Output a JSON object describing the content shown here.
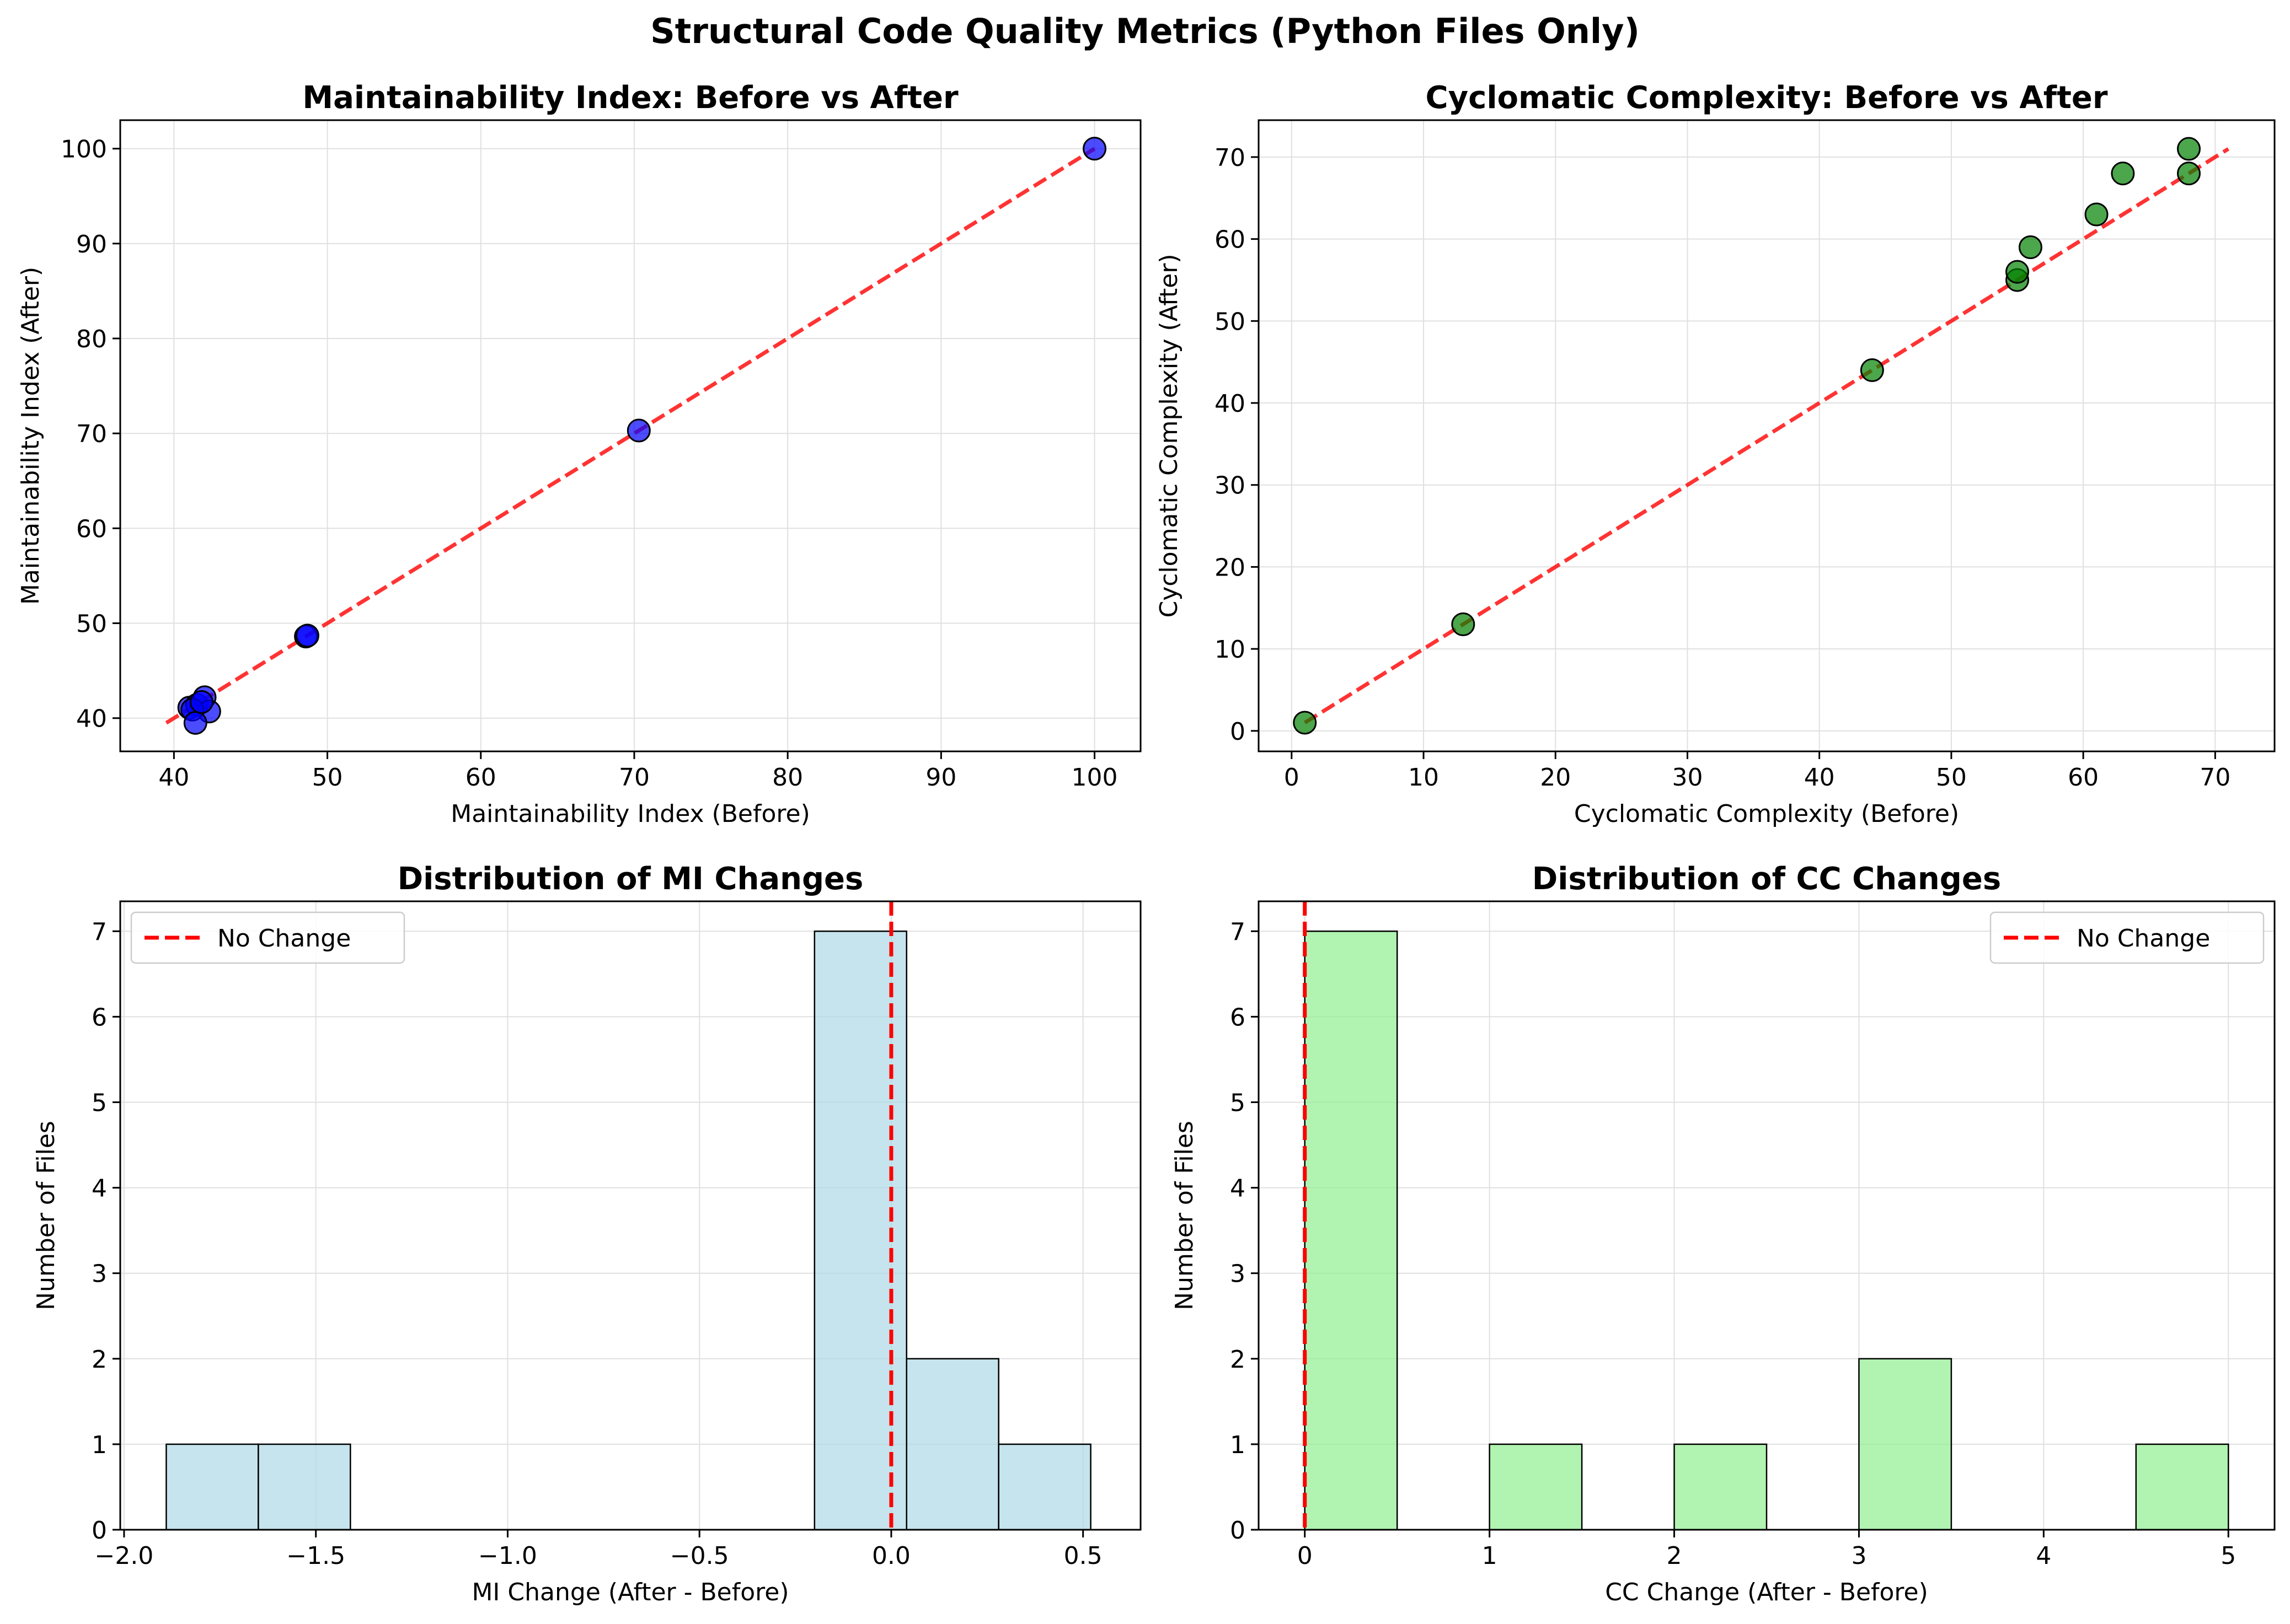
{
  "figure": {
    "suptitle": "Structural Code Quality Metrics (Python Files Only)"
  },
  "chart_data": [
    {
      "type": "scatter",
      "title": "Maintainability Index: Before vs After",
      "xlabel": "Maintainability Index (Before)",
      "ylabel": "Maintainability Index (After)",
      "xlim": [
        36.5,
        103.0
      ],
      "ylim": [
        36.5,
        103.0
      ],
      "xticks": [
        40,
        50,
        60,
        70,
        80,
        90,
        100
      ],
      "yticks": [
        40,
        50,
        60,
        70,
        80,
        90,
        100
      ],
      "grid": true,
      "points": [
        {
          "x": 100.0,
          "y": 100.0
        },
        {
          "x": 70.3,
          "y": 70.3
        },
        {
          "x": 48.6,
          "y": 48.6
        },
        {
          "x": 48.7,
          "y": 48.7
        },
        {
          "x": 41.0,
          "y": 41.1
        },
        {
          "x": 41.5,
          "y": 41.4
        },
        {
          "x": 42.0,
          "y": 42.2
        },
        {
          "x": 42.3,
          "y": 40.7
        },
        {
          "x": 41.2,
          "y": 40.9
        },
        {
          "x": 41.4,
          "y": 39.5
        },
        {
          "x": 41.8,
          "y": 41.7
        }
      ],
      "reference_line": {
        "x": [
          39.5,
          100.0
        ],
        "y": [
          39.5,
          100.0
        ],
        "style": "dashed",
        "color": "#ff0000"
      },
      "marker_color": "#0000ff"
    },
    {
      "type": "scatter",
      "title": "Cyclomatic Complexity: Before vs After",
      "xlabel": "Cyclomatic Complexity (Before)",
      "ylabel": "Cyclomatic Complexity (After)",
      "xlim": [
        -2.5,
        74.5
      ],
      "ylim": [
        -2.5,
        74.5
      ],
      "xticks": [
        0,
        10,
        20,
        30,
        40,
        50,
        60,
        70
      ],
      "yticks": [
        0,
        10,
        20,
        30,
        40,
        50,
        60,
        70
      ],
      "grid": true,
      "points": [
        {
          "x": 1,
          "y": 1
        },
        {
          "x": 13,
          "y": 13
        },
        {
          "x": 44,
          "y": 44
        },
        {
          "x": 55,
          "y": 55
        },
        {
          "x": 55,
          "y": 56
        },
        {
          "x": 56,
          "y": 59
        },
        {
          "x": 61,
          "y": 63
        },
        {
          "x": 63,
          "y": 68
        },
        {
          "x": 68,
          "y": 68
        },
        {
          "x": 68,
          "y": 71
        }
      ],
      "reference_line": {
        "x": [
          1,
          71
        ],
        "y": [
          1,
          71
        ],
        "style": "dashed",
        "color": "#ff0000"
      },
      "marker_color": "#008000"
    },
    {
      "type": "bar",
      "title": "Distribution of MI Changes",
      "xlabel": "MI Change (After - Before)",
      "ylabel": "Number of Files",
      "xlim": [
        -2.01,
        0.65
      ],
      "ylim": [
        0,
        7.35
      ],
      "xticks": [
        -2.0,
        -1.5,
        -1.0,
        -0.5,
        0.0,
        0.5
      ],
      "xtick_labels": [
        "−2.0",
        "−1.5",
        "−1.0",
        "−0.5",
        "0.0",
        "0.5"
      ],
      "yticks": [
        0,
        1,
        2,
        3,
        4,
        5,
        6,
        7
      ],
      "grid": true,
      "bins": [
        {
          "x0": -1.89,
          "x1": -1.65,
          "count": 1
        },
        {
          "x0": -1.65,
          "x1": -1.41,
          "count": 1
        },
        {
          "x0": -0.2,
          "x1": 0.04,
          "count": 7
        },
        {
          "x0": 0.04,
          "x1": 0.28,
          "count": 2
        },
        {
          "x0": 0.28,
          "x1": 0.52,
          "count": 1
        }
      ],
      "bar_color": "#add8e6",
      "reference_x": 0,
      "legend": {
        "label": "No Change",
        "position": "upper left"
      }
    },
    {
      "type": "bar",
      "title": "Distribution of CC Changes",
      "xlabel": "CC Change (After - Before)",
      "ylabel": "Number of Files",
      "xlim": [
        -0.25,
        5.25
      ],
      "ylim": [
        0,
        7.35
      ],
      "xticks": [
        0,
        1,
        2,
        3,
        4,
        5
      ],
      "yticks": [
        0,
        1,
        2,
        3,
        4,
        5,
        6,
        7
      ],
      "grid": true,
      "bins": [
        {
          "x0": 0.0,
          "x1": 0.5,
          "count": 7
        },
        {
          "x0": 1.0,
          "x1": 1.5,
          "count": 1
        },
        {
          "x0": 2.0,
          "x1": 2.5,
          "count": 1
        },
        {
          "x0": 3.0,
          "x1": 3.5,
          "count": 2
        },
        {
          "x0": 4.5,
          "x1": 5.0,
          "count": 1
        }
      ],
      "bar_color": "#90ee90",
      "reference_x": 0,
      "legend": {
        "label": "No Change",
        "position": "upper right"
      }
    }
  ]
}
